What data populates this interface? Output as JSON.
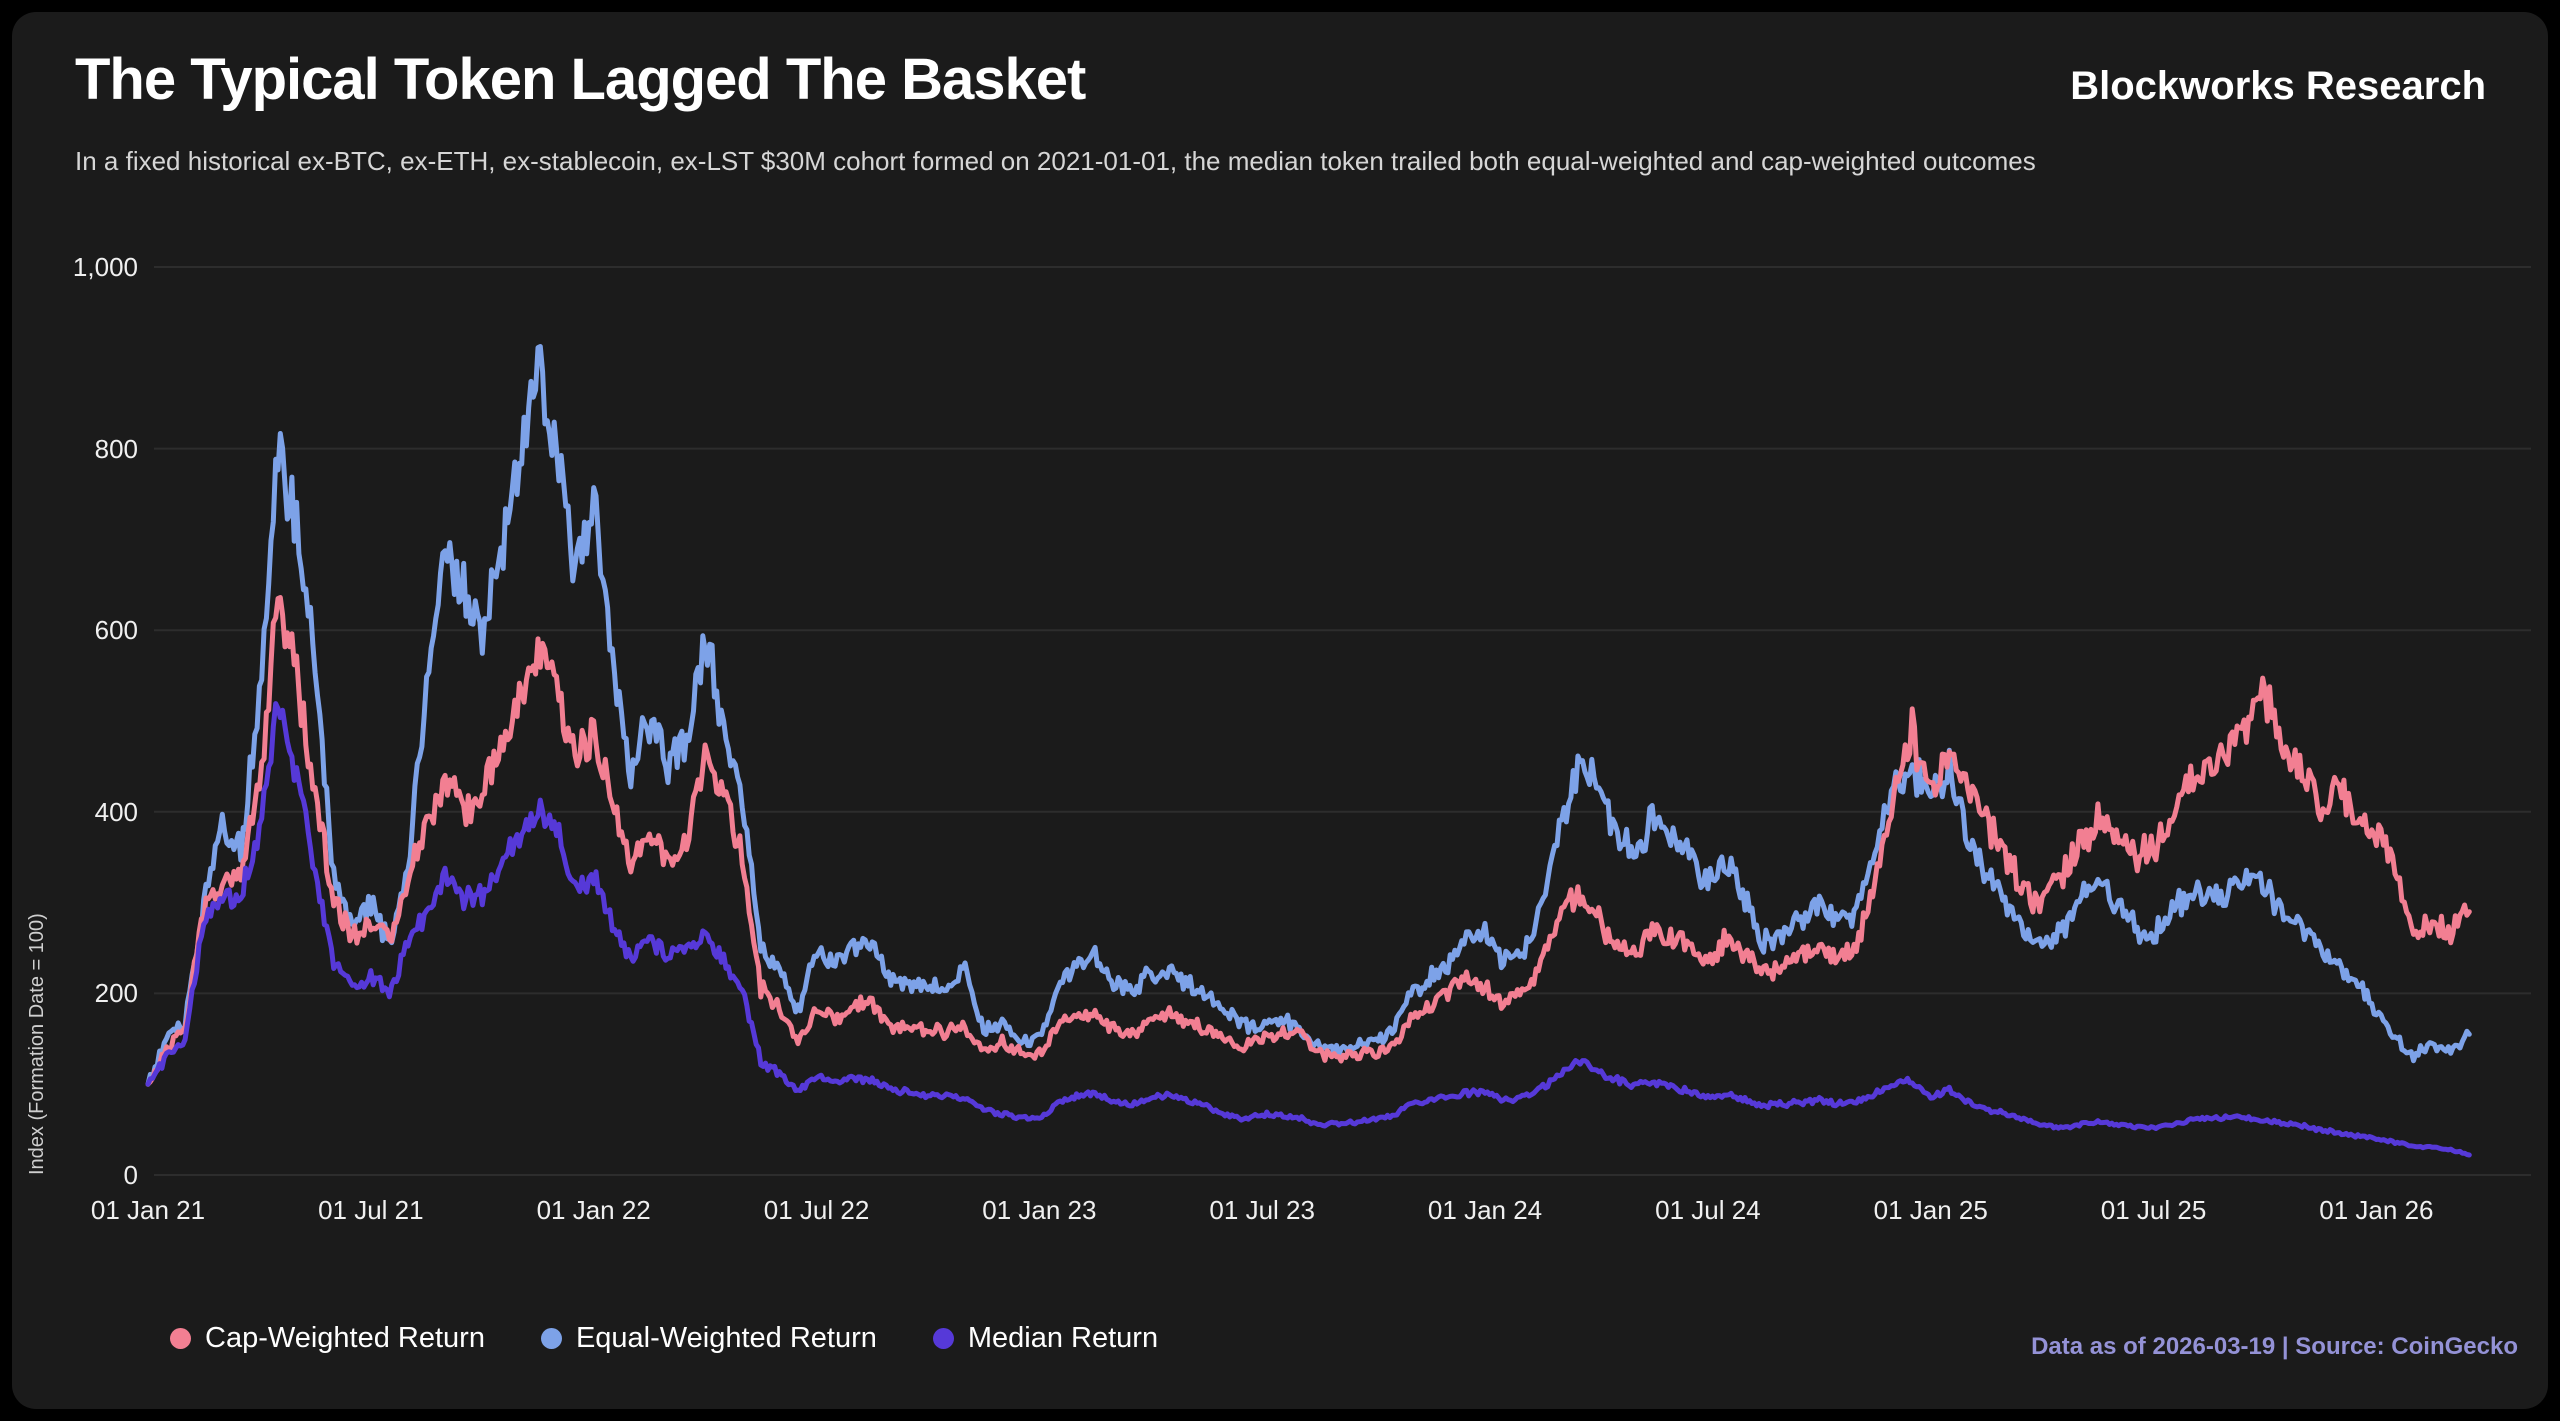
{
  "header": {
    "title": "The Typical Token Lagged The Basket",
    "subtitle": "In a fixed historical ex-BTC, ex-ETH, ex-stablecoin, ex-LST $30M cohort formed on 2021-01-01, the median token trailed both equal-weighted and cap-weighted outcomes",
    "brand": "Blockworks Research"
  },
  "footer": {
    "note": "Data as of 2026-03-19 | Source: CoinGecko"
  },
  "colors": {
    "background": "#1b1b1b",
    "grid": "#2d2d2d",
    "text": "#f0f0f0",
    "subtext": "#cfcfcf",
    "source_note": "#9492d6",
    "cap_weighted": "#f27f92",
    "equal_weighted": "#7da2e8",
    "median": "#5639d8"
  },
  "chart_data": {
    "type": "line",
    "title": "The Typical Token Lagged The Basket",
    "xlabel": "",
    "ylabel": "Index (Formation Date = 100)",
    "ylim": [
      0,
      1000
    ],
    "yticks": [
      0,
      200,
      400,
      600,
      800,
      1000
    ],
    "ytick_labels": [
      "0",
      "200",
      "400",
      "600",
      "800",
      "1,000"
    ],
    "xtick_months": [
      0,
      6,
      12,
      18,
      24,
      30,
      36,
      42,
      48,
      54,
      60
    ],
    "xtick_labels": [
      "01 Jan 21",
      "01 Jul 21",
      "01 Jan 22",
      "01 Jul 22",
      "01 Jan 23",
      "01 Jul 23",
      "01 Jan 24",
      "01 Jul 24",
      "01 Jan 25",
      "01 Jul 25",
      "01 Jan 26"
    ],
    "x_unit": "months since 2021-01-01",
    "x_start": 0,
    "x_step": 0.5,
    "grid": "horizontal",
    "legend_position": "bottom-left",
    "draw_order": [
      1,
      0,
      2
    ],
    "noise_pct": 0.04,
    "series": [
      {
        "name": "Cap-Weighted Return",
        "color": "#f27f92",
        "noise_scale": 1.0,
        "values": [
          100,
          140,
          160,
          295,
          320,
          335,
          430,
          640,
          545,
          420,
          300,
          265,
          280,
          255,
          330,
          375,
          430,
          400,
          420,
          470,
          520,
          575,
          540,
          460,
          485,
          410,
          345,
          380,
          350,
          365,
          465,
          420,
          350,
          205,
          185,
          142,
          182,
          172,
          188,
          190,
          165,
          161,
          160,
          158,
          165,
          136,
          145,
          133,
          133,
          165,
          175,
          180,
          160,
          155,
          172,
          177,
          168,
          160,
          152,
          140,
          152,
          155,
          158,
          134,
          131,
          133,
          134,
          142,
          172,
          185,
          204,
          220,
          208,
          190,
          197,
          230,
          280,
          313,
          285,
          250,
          240,
          272,
          262,
          250,
          235,
          262,
          240,
          222,
          230,
          242,
          250,
          242,
          252,
          322,
          420,
          487,
          420,
          470,
          430,
          390,
          355,
          310,
          300,
          330,
          362,
          390,
          370,
          350,
          360,
          400,
          432,
          452,
          465,
          490,
          530,
          472,
          450,
          405,
          425,
          392,
          378,
          340,
          262,
          278,
          270,
          290
        ]
      },
      {
        "name": "Equal-Weighted Return",
        "color": "#7da2e8",
        "noise_scale": 1.0,
        "values": [
          100,
          150,
          165,
          300,
          390,
          355,
          520,
          800,
          720,
          560,
          330,
          275,
          300,
          255,
          340,
          530,
          690,
          650,
          600,
          685,
          780,
          890,
          800,
          660,
          745,
          560,
          450,
          500,
          450,
          480,
          590,
          500,
          420,
          250,
          230,
          180,
          249,
          235,
          252,
          255,
          215,
          207,
          210,
          200,
          226,
          158,
          165,
          150,
          148,
          205,
          228,
          243,
          210,
          205,
          222,
          226,
          210,
          200,
          185,
          165,
          164,
          172,
          161,
          141,
          138,
          142,
          145,
          158,
          197,
          215,
          234,
          260,
          269,
          234,
          241,
          290,
          380,
          450,
          430,
          380,
          350,
          395,
          380,
          350,
          320,
          345,
          300,
          255,
          262,
          280,
          298,
          282,
          290,
          360,
          430,
          450,
          420,
          450,
          370,
          330,
          305,
          275,
          250,
          265,
          300,
          322,
          300,
          272,
          262,
          290,
          310,
          300,
          312,
          330,
          318,
          290,
          270,
          248,
          232,
          212,
          182,
          150,
          132,
          140,
          138,
          155
        ]
      },
      {
        "name": "Median Return",
        "color": "#5639d8",
        "noise_scale": 0.8,
        "values": [
          100,
          130,
          150,
          280,
          300,
          310,
          380,
          520,
          440,
          330,
          235,
          205,
          220,
          200,
          260,
          285,
          330,
          305,
          310,
          340,
          375,
          400,
          380,
          315,
          330,
          275,
          240,
          260,
          240,
          248,
          265,
          235,
          205,
          125,
          112,
          92,
          108,
          104,
          106,
          105,
          95,
          91,
          88,
          86,
          85,
          72,
          67,
          63,
          62,
          80,
          86,
          91,
          80,
          77,
          86,
          89,
          80,
          75,
          68,
          60,
          67,
          66,
          63,
          55,
          57,
          58,
          61,
          65,
          78,
          82,
          86,
          90,
          91,
          83,
          86,
          95,
          110,
          127,
          113,
          105,
          98,
          104,
          97,
          92,
          85,
          90,
          82,
          76,
          78,
          80,
          82,
          79,
          81,
          90,
          100,
          103,
          85,
          95,
          80,
          73,
          68,
          62,
          55,
          52,
          55,
          58,
          56,
          53,
          52,
          56,
          60,
          62,
          64,
          63,
          60,
          57,
          54,
          50,
          46,
          43,
          40,
          36,
          32,
          30,
          28,
          22
        ]
      }
    ]
  }
}
